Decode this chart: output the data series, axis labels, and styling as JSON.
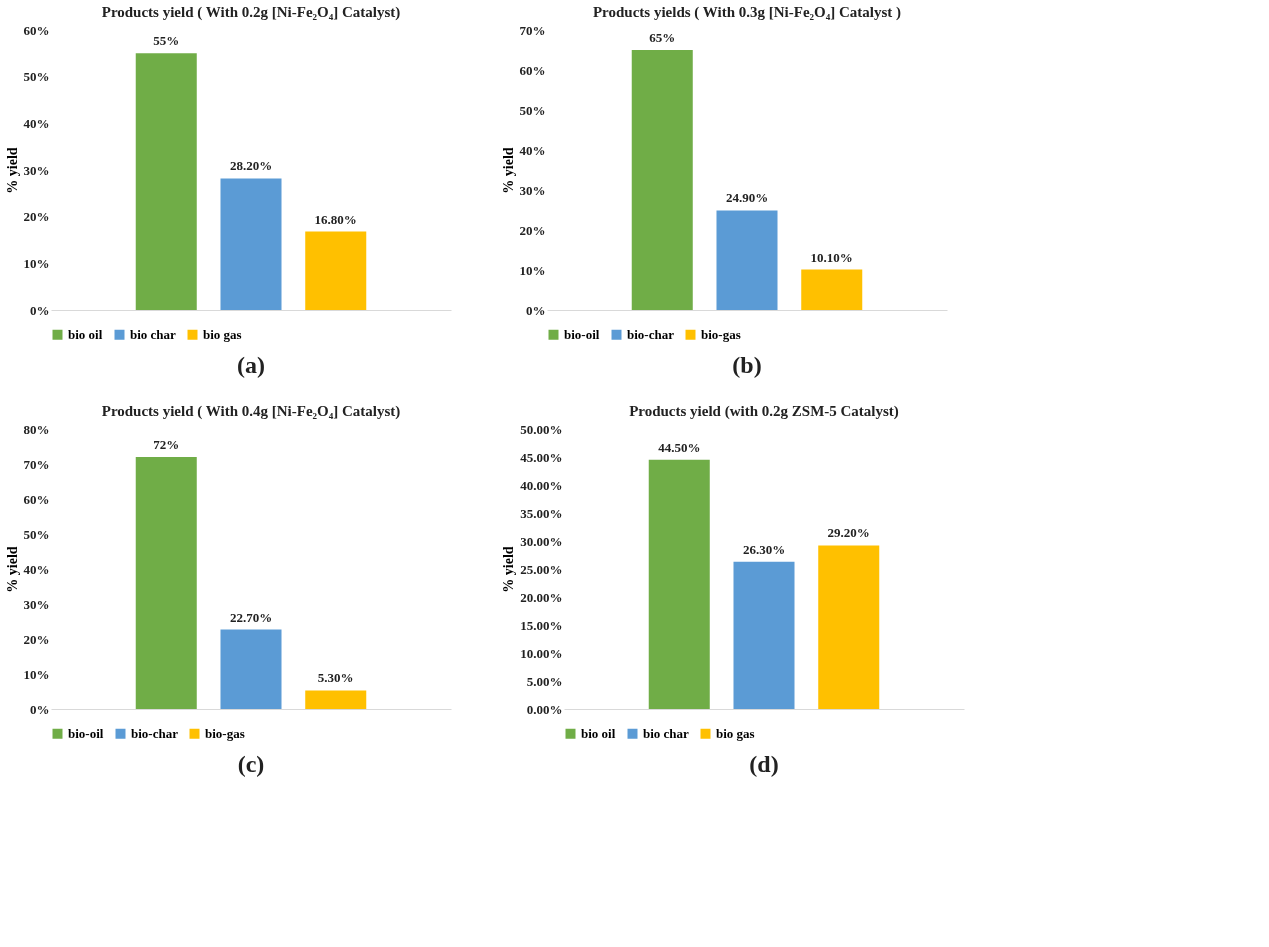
{
  "chart_data": [
    {
      "type": "bar",
      "title": "Products yield ( With 0.2g [Ni-Fe₂O₄] Catalyst)",
      "ylabel": "% yield",
      "categories": [
        null
      ],
      "ylim": [
        0,
        60
      ],
      "yticks": [
        {
          "value": 0,
          "label": "0%"
        },
        {
          "value": 10,
          "label": "10%"
        },
        {
          "value": 20,
          "label": "20%"
        },
        {
          "value": 30,
          "label": "30%"
        },
        {
          "value": 40,
          "label": "40%"
        },
        {
          "value": 50,
          "label": "50%"
        },
        {
          "value": 60,
          "label": "60%"
        }
      ],
      "series": [
        {
          "name": "bio oil",
          "color": "#70ad47",
          "values": [
            55
          ],
          "value_labels": [
            "55%"
          ]
        },
        {
          "name": "bio char",
          "color": "#5b9bd5",
          "values": [
            28.2
          ],
          "value_labels": [
            "28.20%"
          ]
        },
        {
          "name": "bio gas",
          "color": "#ffc000",
          "values": [
            16.8
          ],
          "value_labels": [
            "16.80%"
          ]
        }
      ],
      "legend": "bottom",
      "annotations": [
        "(a)"
      ]
    },
    {
      "type": "bar",
      "title": "Products yields ( With 0.3g [Ni-Fe₂O₄] Catalyst )",
      "ylabel": "% yield",
      "categories": [
        null
      ],
      "ylim": [
        0,
        70
      ],
      "yticks": [
        {
          "value": 0,
          "label": "0%"
        },
        {
          "value": 10,
          "label": "10%"
        },
        {
          "value": 20,
          "label": "20%"
        },
        {
          "value": 30,
          "label": "30%"
        },
        {
          "value": 40,
          "label": "40%"
        },
        {
          "value": 50,
          "label": "50%"
        },
        {
          "value": 60,
          "label": "60%"
        },
        {
          "value": 70,
          "label": "70%"
        }
      ],
      "series": [
        {
          "name": "bio-oil",
          "color": "#70ad47",
          "values": [
            65
          ],
          "value_labels": [
            "65%"
          ]
        },
        {
          "name": "bio-char",
          "color": "#5b9bd5",
          "values": [
            24.9
          ],
          "value_labels": [
            "24.90%"
          ]
        },
        {
          "name": "bio-gas",
          "color": "#ffc000",
          "values": [
            10.1
          ],
          "value_labels": [
            "10.10%"
          ]
        }
      ],
      "legend": "bottom",
      "annotations": [
        "(b)"
      ]
    },
    {
      "type": "bar",
      "title": "Products yield ( With 0.4g [Ni-Fe₂O₄] Catalyst)",
      "ylabel": "% yield",
      "categories": [
        null
      ],
      "ylim": [
        0,
        80
      ],
      "yticks": [
        {
          "value": 0,
          "label": "0%"
        },
        {
          "value": 10,
          "label": "10%"
        },
        {
          "value": 20,
          "label": "20%"
        },
        {
          "value": 30,
          "label": "30%"
        },
        {
          "value": 40,
          "label": "40%"
        },
        {
          "value": 50,
          "label": "50%"
        },
        {
          "value": 60,
          "label": "60%"
        },
        {
          "value": 70,
          "label": "70%"
        },
        {
          "value": 80,
          "label": "80%"
        }
      ],
      "series": [
        {
          "name": "bio-oil",
          "color": "#70ad47",
          "values": [
            72
          ],
          "value_labels": [
            "72%"
          ]
        },
        {
          "name": "bio-char",
          "color": "#5b9bd5",
          "values": [
            22.7
          ],
          "value_labels": [
            "22.70%"
          ]
        },
        {
          "name": "bio-gas",
          "color": "#ffc000",
          "values": [
            5.3
          ],
          "value_labels": [
            "5.30%"
          ]
        }
      ],
      "legend": "bottom",
      "annotations": [
        "(c)"
      ]
    },
    {
      "type": "bar",
      "title": "Products yield (with 0.2g ZSM-5 Catalyst)",
      "ylabel": "% yield",
      "categories": [
        null
      ],
      "ylim": [
        0,
        50
      ],
      "yticks": [
        {
          "value": 0,
          "label": "0.00%"
        },
        {
          "value": 5,
          "label": "5.00%"
        },
        {
          "value": 10,
          "label": "10.00%"
        },
        {
          "value": 15,
          "label": "15.00%"
        },
        {
          "value": 20,
          "label": "20.00%"
        },
        {
          "value": 25,
          "label": "25.00%"
        },
        {
          "value": 30,
          "label": "30.00%"
        },
        {
          "value": 35,
          "label": "35.00%"
        },
        {
          "value": 40,
          "label": "40.00%"
        },
        {
          "value": 45,
          "label": "45.00%"
        },
        {
          "value": 50,
          "label": "50.00%"
        }
      ],
      "series": [
        {
          "name": "bio oil",
          "color": "#70ad47",
          "values": [
            44.5
          ],
          "value_labels": [
            "44.50%"
          ]
        },
        {
          "name": "bio char",
          "color": "#5b9bd5",
          "values": [
            26.3
          ],
          "value_labels": [
            "26.30%"
          ]
        },
        {
          "name": "bio gas",
          "color": "#ffc000",
          "values": [
            29.2
          ],
          "value_labels": [
            "29.20%"
          ]
        }
      ],
      "legend": "bottom",
      "annotations": [
        "(d)"
      ]
    }
  ]
}
